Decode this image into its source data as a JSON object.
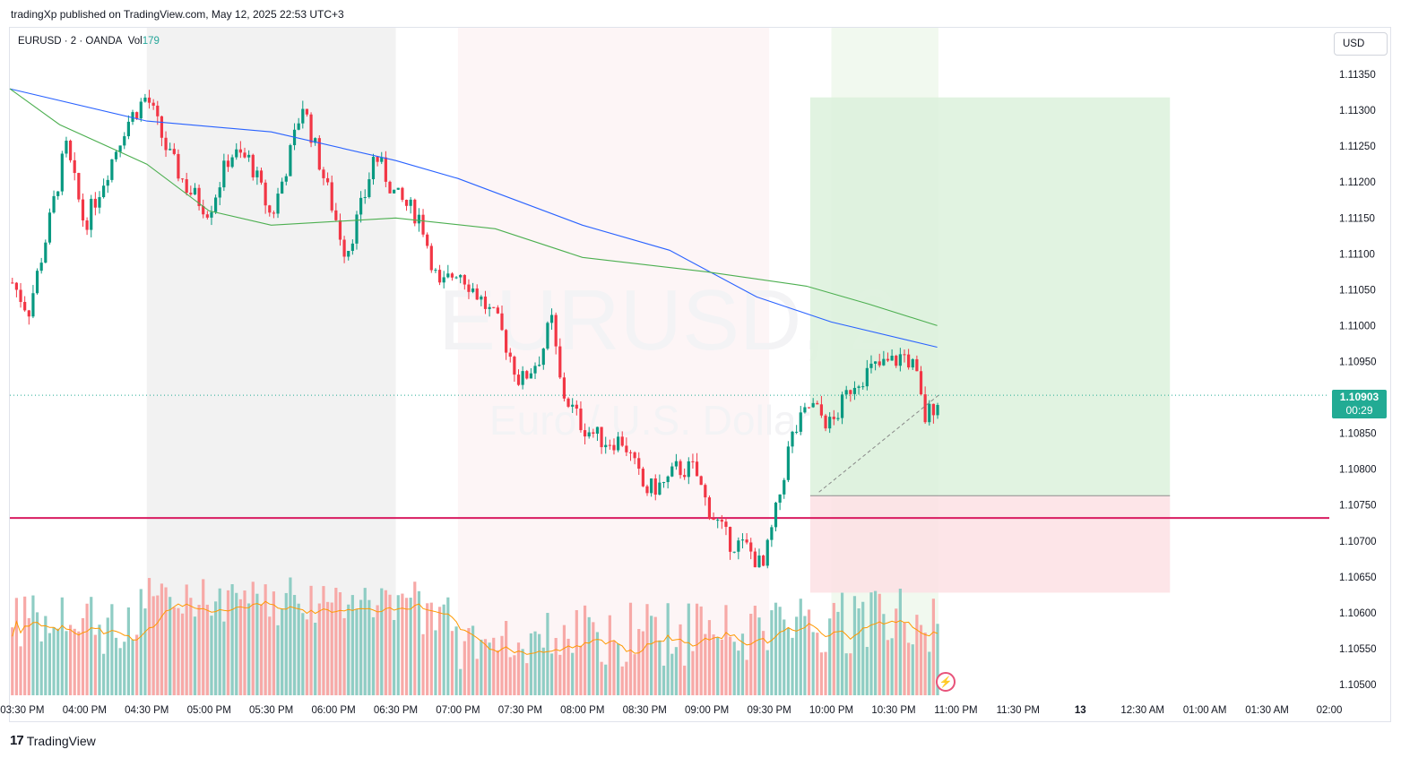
{
  "header": {
    "published_text": "tradingXp published on TradingView.com, May 12, 2025 22:53 UTC+3"
  },
  "legend": {
    "symbol": "EURUSD · 2 · OANDA",
    "vol_label": "Vol",
    "vol_value": "179"
  },
  "watermark": {
    "symbol": "EURUSD, 2",
    "description": "Euro / U.S. Dollar"
  },
  "currency_button": "USD",
  "last_price": {
    "price": "1.10903",
    "countdown": "00:29"
  },
  "brand": {
    "logo": "17",
    "name": "TradingView"
  },
  "colors": {
    "up": "#089981",
    "down": "#f23645",
    "vol_up": "#8fcdc4",
    "vol_down": "#f7a9a7",
    "ma_blue": "#2962ff",
    "ma_green": "#4caf50",
    "vol_ma": "#ff9800",
    "horizontal_line": "#d81b60",
    "target_zone": "#dcf1dc",
    "stop_zone": "#fde0e4",
    "price_tag": "#22ab94"
  },
  "chart_data": {
    "type": "candlestick",
    "title": "",
    "x_tick_labels": [
      "03:30 PM",
      "04:00 PM",
      "04:30 PM",
      "05:00 PM",
      "05:30 PM",
      "06:00 PM",
      "06:30 PM",
      "07:00 PM",
      "07:30 PM",
      "08:00 PM",
      "08:30 PM",
      "09:00 PM",
      "09:30 PM",
      "10:00 PM",
      "10:30 PM",
      "11:00 PM",
      "11:30 PM",
      "13",
      "12:30 AM",
      "01:00 AM",
      "01:30 AM",
      "02:00"
    ],
    "y_ticks": [
      "1.11350",
      "1.11300",
      "1.11250",
      "1.11200",
      "1.11150",
      "1.11100",
      "1.11050",
      "1.11000",
      "1.10950",
      "1.10900",
      "1.10850",
      "1.10800",
      "1.10750",
      "1.10700",
      "1.10650",
      "1.10600",
      "1.10550",
      "1.10500"
    ],
    "ylim": [
      1.10485,
      1.11415
    ],
    "time_range_hours": [
      15.4,
      26.0
    ],
    "price_waypoints": [
      [
        15.42,
        1.1106
      ],
      [
        15.55,
        1.1102
      ],
      [
        15.7,
        1.1113
      ],
      [
        15.85,
        1.1125
      ],
      [
        16.0,
        1.1114
      ],
      [
        16.17,
        1.1121
      ],
      [
        16.33,
        1.1128
      ],
      [
        16.5,
        1.1132
      ],
      [
        16.67,
        1.1124
      ],
      [
        16.83,
        1.1119
      ],
      [
        17.0,
        1.1116
      ],
      [
        17.17,
        1.1124
      ],
      [
        17.33,
        1.1123
      ],
      [
        17.5,
        1.1115
      ],
      [
        17.67,
        1.1125
      ],
      [
        17.75,
        1.1131
      ],
      [
        17.9,
        1.1122
      ],
      [
        18.0,
        1.1116
      ],
      [
        18.1,
        1.111
      ],
      [
        18.25,
        1.1118
      ],
      [
        18.33,
        1.1124
      ],
      [
        18.5,
        1.1118
      ],
      [
        18.7,
        1.1115
      ],
      [
        18.85,
        1.1105
      ],
      [
        19.0,
        1.1108
      ],
      [
        19.17,
        1.1104
      ],
      [
        19.33,
        1.11
      ],
      [
        19.5,
        1.1092
      ],
      [
        19.67,
        1.1096
      ],
      [
        19.75,
        1.1101
      ],
      [
        19.83,
        1.1091
      ],
      [
        20.0,
        1.1086
      ],
      [
        20.17,
        1.1084
      ],
      [
        20.33,
        1.1084
      ],
      [
        20.5,
        1.1077
      ],
      [
        20.67,
        1.1078
      ],
      [
        20.75,
        1.108
      ],
      [
        20.9,
        1.108
      ],
      [
        21.0,
        1.1075
      ],
      [
        21.17,
        1.107
      ],
      [
        21.33,
        1.1069
      ],
      [
        21.45,
        1.1066
      ],
      [
        21.58,
        1.1076
      ],
      [
        21.67,
        1.1084
      ],
      [
        21.83,
        1.1089
      ],
      [
        22.0,
        1.1086
      ],
      [
        22.17,
        1.1092
      ],
      [
        22.33,
        1.1094
      ],
      [
        22.5,
        1.1095
      ],
      [
        22.58,
        1.1096
      ],
      [
        22.67,
        1.1094
      ],
      [
        22.75,
        1.1087
      ],
      [
        22.86,
        1.109
      ]
    ],
    "moving_averages": [
      {
        "color": "blue",
        "points": [
          [
            15.4,
            1.1133
          ],
          [
            16.5,
            1.11285
          ],
          [
            17.5,
            1.1127
          ],
          [
            18.5,
            1.1123
          ],
          [
            19.0,
            1.11205
          ],
          [
            20.0,
            1.1114
          ],
          [
            20.7,
            1.11105
          ],
          [
            21.4,
            1.1104
          ],
          [
            22.0,
            1.11005
          ],
          [
            22.85,
            1.1097
          ]
        ]
      },
      {
        "color": "green",
        "points": [
          [
            15.4,
            1.1133
          ],
          [
            15.8,
            1.1128
          ],
          [
            16.5,
            1.11225
          ],
          [
            17.0,
            1.1116
          ],
          [
            17.5,
            1.1114
          ],
          [
            18.5,
            1.1115
          ],
          [
            19.3,
            1.11135
          ],
          [
            20.0,
            1.11095
          ],
          [
            21.0,
            1.11075
          ],
          [
            21.8,
            1.11055
          ],
          [
            22.3,
            1.1103
          ],
          [
            22.85,
            1.11
          ]
        ]
      }
    ],
    "horizontal_level": 1.10732,
    "position_tool": {
      "entry": 1.10763,
      "target": 1.11318,
      "stop": 1.10628,
      "start_hour": 21.83,
      "end_hour": 24.72
    },
    "session_shading_hours": [
      [
        16.5,
        18.5
      ],
      [
        19.0,
        21.5
      ],
      [
        22.0,
        22.86
      ]
    ],
    "volume_levels": [
      0.4,
      0.6,
      0.9,
      0.55,
      0.75
    ],
    "grid": false,
    "legend_position": "top-left"
  }
}
